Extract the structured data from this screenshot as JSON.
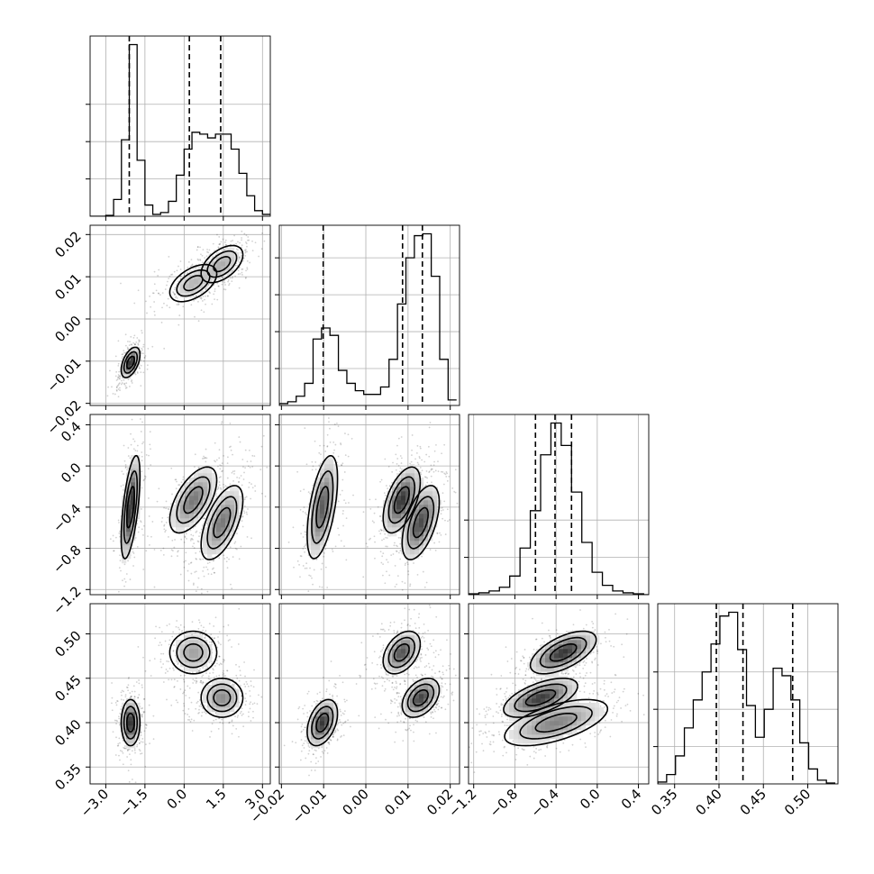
{
  "chart_data": {
    "type": "corner",
    "parameters": [
      {
        "id": "p0",
        "range": [
          -3.6,
          3.3
        ],
        "ticks": [
          -3.0,
          -1.5,
          0.0,
          1.5,
          3.0
        ],
        "tick_labels": [
          "−3.0",
          "−1.5",
          "0.0",
          "1.5",
          "3.0"
        ],
        "quantiles": [
          -2.1,
          0.2,
          1.4
        ],
        "histogram": {
          "edges": [
            -3.6,
            -3.3,
            -3.0,
            -2.7,
            -2.4,
            -2.1,
            -1.8,
            -1.5,
            -1.2,
            -0.9,
            -0.6,
            -0.3,
            0.0,
            0.3,
            0.6,
            0.9,
            1.2,
            1.5,
            1.8,
            2.1,
            2.4,
            2.7,
            3.0,
            3.3
          ],
          "counts": [
            0,
            0,
            0.005,
            0.09,
            0.41,
            0.92,
            0.3,
            0.06,
            0.01,
            0.02,
            0.08,
            0.22,
            0.36,
            0.45,
            0.44,
            0.42,
            0.44,
            0.44,
            0.36,
            0.23,
            0.11,
            0.03,
            0.01
          ]
        },
        "hist_yticks": [
          0.2,
          0.4,
          0.6
        ]
      },
      {
        "id": "p1",
        "range": [
          -0.0205,
          0.0222
        ],
        "ticks": [
          -0.02,
          -0.01,
          0.0,
          0.01,
          0.02
        ],
        "tick_labels": [
          "−0.02",
          "−0.01",
          "0.00",
          "0.01",
          "0.02"
        ],
        "quantiles": [
          -0.0101,
          0.0087,
          0.0134
        ],
        "histogram": {
          "edges": [
            -0.0205,
            -0.0185,
            -0.0165,
            -0.0145,
            -0.0125,
            -0.0105,
            -0.0085,
            -0.0065,
            -0.0045,
            -0.0025,
            -0.0005,
            0.0015,
            0.0035,
            0.0055,
            0.0075,
            0.0095,
            0.0115,
            0.0135,
            0.0155,
            0.0175,
            0.0195,
            0.0215
          ],
          "counts": [
            0.01,
            0.02,
            0.05,
            0.12,
            0.36,
            0.42,
            0.38,
            0.19,
            0.12,
            0.08,
            0.06,
            0.06,
            0.1,
            0.25,
            0.55,
            0.8,
            0.92,
            0.93,
            0.7,
            0.25,
            0.03
          ]
        },
        "hist_yticks": [
          0.2,
          0.4,
          0.6,
          0.8
        ]
      },
      {
        "id": "p2",
        "range": [
          -1.25,
          0.5
        ],
        "ticks": [
          -1.2,
          -0.8,
          -0.4,
          0.0,
          0.4
        ],
        "tick_labels": [
          "−1.2",
          "−0.8",
          "−0.4",
          "0.0",
          "0.4"
        ],
        "quantiles": [
          -0.6,
          -0.41,
          -0.25
        ],
        "histogram": {
          "edges": [
            -1.25,
            -1.15,
            -1.05,
            -0.95,
            -0.85,
            -0.75,
            -0.65,
            -0.55,
            -0.45,
            -0.35,
            -0.25,
            -0.15,
            -0.05,
            0.05,
            0.15,
            0.25,
            0.35,
            0.45,
            0.5
          ],
          "counts": [
            0.005,
            0.01,
            0.02,
            0.04,
            0.1,
            0.25,
            0.45,
            0.75,
            0.92,
            0.8,
            0.55,
            0.28,
            0.12,
            0.05,
            0.02,
            0.01,
            0.005,
            0
          ]
        },
        "hist_yticks": [
          0.2,
          0.4
        ]
      },
      {
        "id": "p3",
        "range": [
          0.331,
          0.534
        ],
        "ticks": [
          0.35,
          0.4,
          0.45,
          0.5
        ],
        "tick_labels": [
          "0.35",
          "0.40",
          "0.45",
          "0.50"
        ],
        "quantiles": [
          0.397,
          0.427,
          0.483
        ],
        "histogram": {
          "edges": [
            0.331,
            0.341,
            0.351,
            0.361,
            0.371,
            0.381,
            0.391,
            0.401,
            0.411,
            0.421,
            0.431,
            0.441,
            0.451,
            0.461,
            0.471,
            0.481,
            0.491,
            0.501,
            0.511,
            0.521,
            0.531
          ],
          "counts": [
            0.01,
            0.05,
            0.15,
            0.3,
            0.45,
            0.6,
            0.75,
            0.9,
            0.92,
            0.72,
            0.42,
            0.25,
            0.4,
            0.62,
            0.58,
            0.45,
            0.22,
            0.08,
            0.02,
            0.005
          ]
        },
        "hist_yticks": [
          0.2,
          0.4,
          0.6
        ]
      }
    ],
    "clusters": [
      {
        "center": [
          -2.05,
          -0.0103,
          -0.4,
          0.4
        ],
        "sd": [
          0.18,
          0.0018,
          0.25,
          0.013
        ],
        "weight": 0.34
      },
      {
        "center": [
          0.35,
          0.0085,
          -0.33,
          0.479
        ],
        "sd": [
          0.45,
          0.0022,
          0.16,
          0.012
        ],
        "weight": 0.33
      },
      {
        "center": [
          1.45,
          0.013,
          -0.55,
          0.428
        ],
        "sd": [
          0.4,
          0.0022,
          0.18,
          0.011
        ],
        "weight": 0.33
      }
    ],
    "contour_levels": [
      0.39,
      0.68,
      0.86
    ],
    "grid": true
  }
}
